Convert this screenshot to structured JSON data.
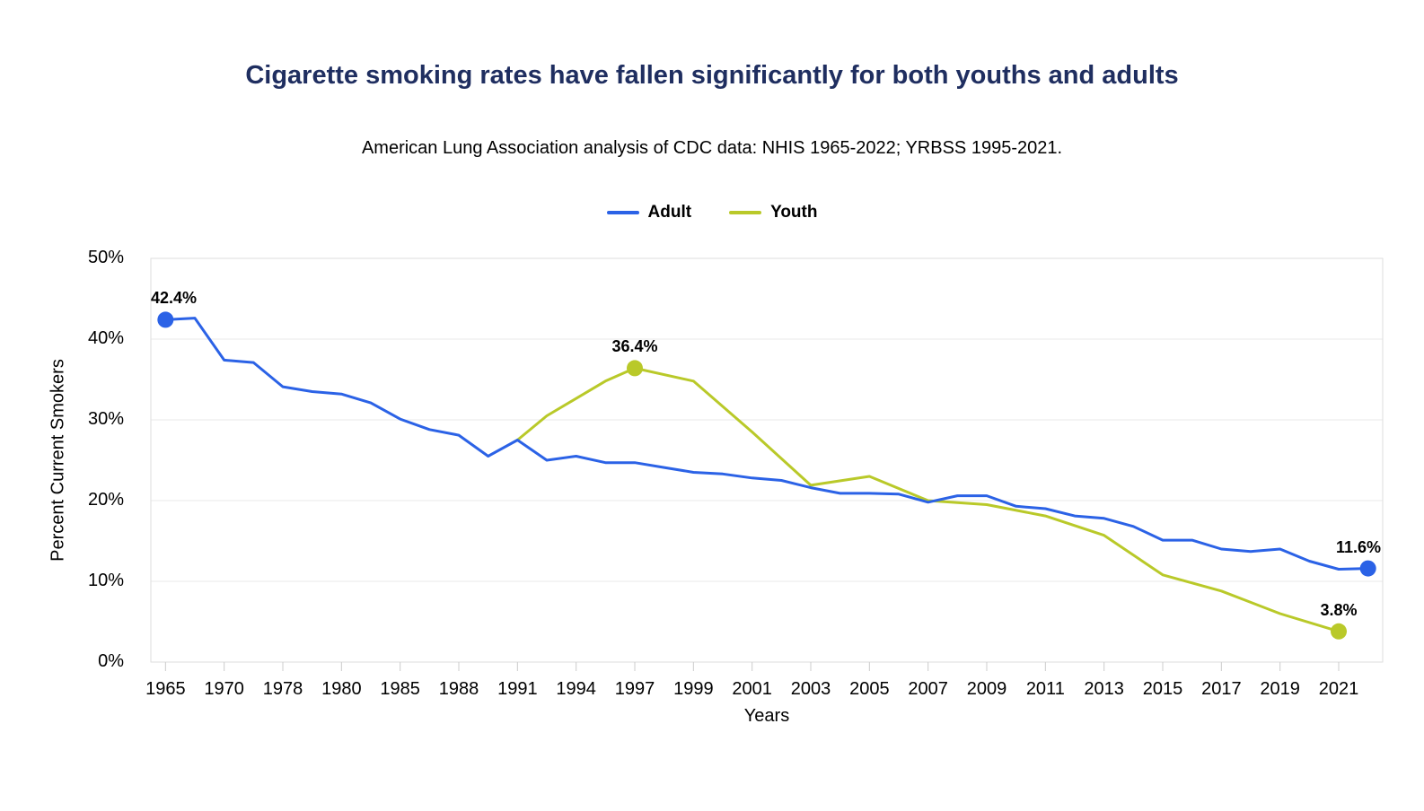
{
  "chart_data": {
    "type": "line",
    "title": "Cigarette smoking rates have fallen significantly for both youths and adults",
    "subtitle": "American Lung Association analysis of CDC data: NHIS 1965-2022; YRBSS 1995-2021.",
    "title_color": "#1f2e60",
    "xlabel": "Years",
    "ylabel": "Percent Current Smokers",
    "ylim": [
      0,
      50
    ],
    "grid": "horizontal",
    "legend_position": "top-center",
    "y_tick_labels": [
      "0%",
      "10%",
      "20%",
      "30%",
      "40%",
      "50%"
    ],
    "x_tick_labels": [
      "1965",
      "1970",
      "1978",
      "1980",
      "1985",
      "1988",
      "1991",
      "1994",
      "1997",
      "1999",
      "2001",
      "2003",
      "2005",
      "2007",
      "2009",
      "2011",
      "2013",
      "2015",
      "2017",
      "2019",
      "2021"
    ],
    "categories": [
      1965,
      1966,
      1970,
      1974,
      1978,
      1979,
      1980,
      1983,
      1985,
      1987,
      1988,
      1990,
      1991,
      1993,
      1994,
      1995,
      1997,
      1998,
      1999,
      2000,
      2001,
      2002,
      2003,
      2004,
      2005,
      2006,
      2007,
      2008,
      2009,
      2010,
      2011,
      2012,
      2013,
      2014,
      2015,
      2016,
      2017,
      2018,
      2019,
      2020,
      2021,
      2022
    ],
    "series": [
      {
        "name": "Youth",
        "color": "#b9c929",
        "x": [
          1991,
          1993,
          1995,
          1997,
          1999,
          2001,
          2003,
          2005,
          2007,
          2009,
          2011,
          2013,
          2015,
          2017,
          2019,
          2021
        ],
        "values": [
          27.5,
          30.5,
          34.8,
          36.4,
          34.8,
          28.5,
          21.9,
          23.0,
          20.0,
          19.5,
          18.1,
          15.7,
          10.8,
          8.8,
          6.0,
          3.8
        ]
      },
      {
        "name": "Adult",
        "color": "#2b62e6",
        "x": [
          1965,
          1966,
          1970,
          1974,
          1978,
          1979,
          1980,
          1983,
          1985,
          1987,
          1988,
          1990,
          1991,
          1993,
          1994,
          1995,
          1997,
          1998,
          1999,
          2000,
          2001,
          2002,
          2003,
          2004,
          2005,
          2006,
          2007,
          2008,
          2009,
          2010,
          2011,
          2012,
          2013,
          2014,
          2015,
          2016,
          2017,
          2018,
          2019,
          2020,
          2021,
          2022
        ],
        "values": [
          42.4,
          42.6,
          37.4,
          37.1,
          34.1,
          33.5,
          33.2,
          32.1,
          30.1,
          28.8,
          28.1,
          25.5,
          27.5,
          25.0,
          25.5,
          24.7,
          24.7,
          24.1,
          23.5,
          23.3,
          22.8,
          22.5,
          21.6,
          20.9,
          20.9,
          20.8,
          19.8,
          20.6,
          20.6,
          19.3,
          19.0,
          18.1,
          17.8,
          16.8,
          15.1,
          15.1,
          14.0,
          13.7,
          14.0,
          12.5,
          11.5,
          11.6
        ]
      }
    ],
    "annotations": [
      {
        "text": "42.4%",
        "series": "Adult",
        "year": 1965,
        "value": 42.4
      },
      {
        "text": "36.4%",
        "series": "Youth",
        "year": 1997,
        "value": 36.4
      },
      {
        "text": "11.6%",
        "series": "Adult",
        "year": 2022,
        "value": 11.6
      },
      {
        "text": "3.8%",
        "series": "Youth",
        "year": 2021,
        "value": 3.8
      }
    ],
    "legend": [
      {
        "label": "Adult",
        "color": "#2b62e6"
      },
      {
        "label": "Youth",
        "color": "#b9c929"
      }
    ]
  }
}
